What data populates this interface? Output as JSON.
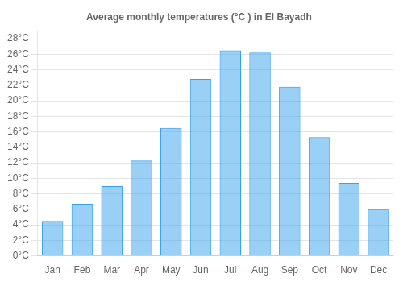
{
  "chart_data": {
    "type": "bar",
    "title": "Average monthly temperatures (°C ) in El Bayadh",
    "categories": [
      "Jan",
      "Feb",
      "Mar",
      "Apr",
      "May",
      "Jun",
      "Jul",
      "Aug",
      "Sep",
      "Oct",
      "Nov",
      "Dec"
    ],
    "values": [
      4.5,
      6.7,
      9.0,
      12.3,
      16.5,
      22.8,
      26.5,
      26.2,
      21.8,
      15.3,
      9.4,
      6.0
    ],
    "ylim": [
      0,
      29
    ],
    "yticks": [
      {
        "value": 0,
        "label": "0°C"
      },
      {
        "value": 2,
        "label": "2°C"
      },
      {
        "value": 4,
        "label": "4°C"
      },
      {
        "value": 6,
        "label": "6°C"
      },
      {
        "value": 8,
        "label": "8°C"
      },
      {
        "value": 10,
        "label": "10°C"
      },
      {
        "value": 12,
        "label": "12°C"
      },
      {
        "value": 14,
        "label": "14°C"
      },
      {
        "value": 16,
        "label": "16°C"
      },
      {
        "value": 18,
        "label": "18°C"
      },
      {
        "value": 20,
        "label": "20°C"
      },
      {
        "value": 22,
        "label": "22°C"
      },
      {
        "value": 24,
        "label": "24°C"
      },
      {
        "value": 26,
        "label": "26°C"
      },
      {
        "value": 28,
        "label": "28°C"
      }
    ],
    "grid": true
  }
}
